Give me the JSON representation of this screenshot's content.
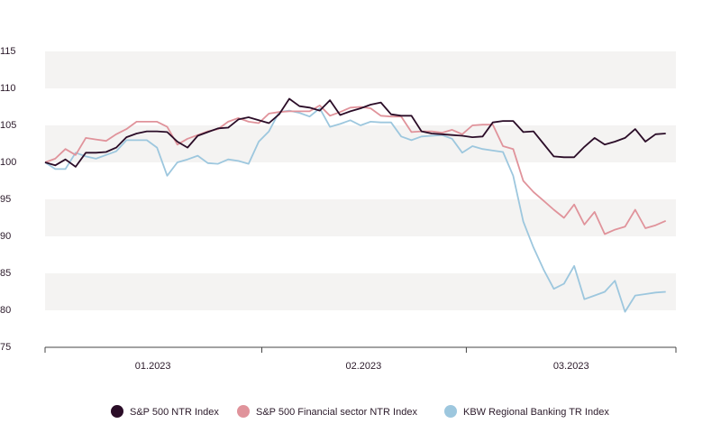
{
  "chart_data": {
    "type": "line",
    "x": [
      0,
      1,
      2,
      3,
      4,
      5,
      6,
      7,
      8,
      9,
      10,
      11,
      12,
      13,
      14,
      15,
      16,
      17,
      18,
      19,
      20,
      21,
      22,
      23,
      24,
      25,
      26,
      27,
      28,
      29,
      30,
      31,
      32,
      33,
      34,
      35,
      36,
      37,
      38,
      39,
      40,
      41,
      42,
      43,
      44,
      45,
      46,
      47,
      48,
      49,
      50,
      51,
      52,
      53,
      54,
      55,
      56,
      57,
      58,
      59,
      60,
      61
    ],
    "xlim": [
      0,
      62
    ],
    "xticks": [
      {
        "value": 10.6,
        "label": "01.2023"
      },
      {
        "value": 31.3,
        "label": "02.2023"
      },
      {
        "value": 51.7,
        "label": "03.2023"
      }
    ],
    "xdividers": [
      0,
      21.3,
      41.4,
      62
    ],
    "ylim": [
      75,
      115
    ],
    "yticks": [
      75,
      80,
      85,
      90,
      95,
      100,
      105,
      110,
      115
    ],
    "bands": true,
    "legend": "bottom",
    "series": [
      {
        "name": "S&P 500 NTR Index",
        "color": "#2b0d28",
        "values": [
          100,
          99.6,
          100.4,
          99.4,
          101.3,
          101.3,
          101.4,
          102,
          103.4,
          103.9,
          104.2,
          104.2,
          104.1,
          102.8,
          102,
          103.6,
          104.1,
          104.6,
          104.7,
          105.8,
          106.1,
          105.7,
          105.3,
          106.5,
          108.6,
          107.6,
          107.4,
          107,
          108.4,
          106.4,
          106.9,
          107.3,
          107.8,
          108.1,
          106.5,
          106.3,
          106.3,
          104.2,
          103.9,
          103.8,
          103.7,
          103.6,
          103.4,
          103.5,
          105.4,
          105.6,
          105.6,
          104.1,
          104.2,
          102.5,
          100.8,
          100.7,
          100.7,
          102.1,
          103.3,
          102.4,
          102.8,
          103.3,
          104.5,
          102.8,
          103.8,
          103.9
        ]
      },
      {
        "name": "S&P 500 Financial sector NTR Index",
        "color": "#e0939b",
        "values": [
          100,
          100.5,
          101.8,
          101,
          103.3,
          103.1,
          102.9,
          103.8,
          104.5,
          105.5,
          105.5,
          105.5,
          104.8,
          102.4,
          103.2,
          103.7,
          104.2,
          104.5,
          105.5,
          106,
          105.5,
          105.3,
          106.6,
          106.8,
          106.9,
          106.9,
          106.9,
          107.7,
          106.3,
          106.8,
          107.4,
          107.5,
          107.3,
          106.3,
          106.2,
          106.2,
          104.1,
          104.2,
          104.2,
          104,
          104.4,
          103.8,
          105,
          105.1,
          105.1,
          102.2,
          101.8,
          97.5,
          96,
          94.8,
          93.6,
          92.5,
          94.3,
          91.6,
          93.3,
          90.3,
          90.9,
          91.3,
          93.6,
          91.1,
          91.5,
          92.1
        ]
      },
      {
        "name": "KBW Regional Banking TR Index",
        "color": "#9dc7de",
        "values": [
          100,
          99.1,
          99.1,
          101.3,
          100.8,
          100.5,
          101,
          101.5,
          103,
          103,
          103,
          102,
          98.2,
          100,
          100.4,
          100.9,
          99.9,
          99.8,
          100.4,
          100.2,
          99.8,
          102.8,
          104.2,
          106.8,
          107,
          106.7,
          106.2,
          107.3,
          104.8,
          105.2,
          105.7,
          105,
          105.5,
          105.4,
          105.4,
          103.5,
          103,
          103.5,
          103.6,
          103.7,
          103.2,
          101.3,
          102.2,
          101.8,
          101.6,
          101.4,
          98.2,
          92,
          88.5,
          85.5,
          82.9,
          83.6,
          86,
          81.5,
          82,
          82.5,
          84,
          79.8,
          82,
          82.2,
          82.4,
          82.5
        ]
      }
    ]
  }
}
